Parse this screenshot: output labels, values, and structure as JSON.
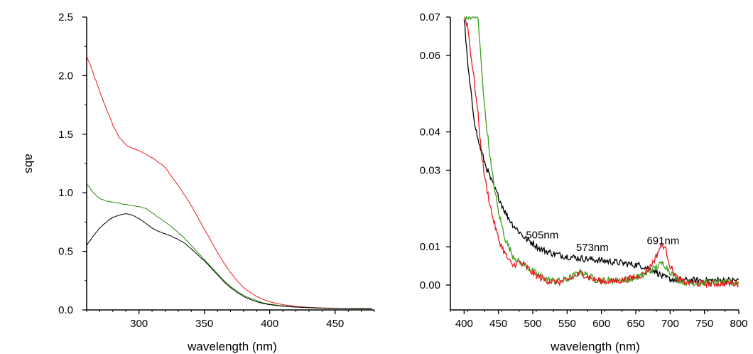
{
  "colors": {
    "red": "#e8191e",
    "green": "#2e8b12",
    "black": "#000000",
    "green_right": "#3aa01a"
  },
  "chart_data": [
    {
      "type": "line",
      "xlabel": "wavelength (nm)",
      "ylabel": "abs",
      "xlim": [
        260,
        480
      ],
      "ylim": [
        0.0,
        2.5
      ],
      "x_ticks": [
        300,
        350,
        400,
        450
      ],
      "x_tick_labels": [
        "300",
        "350",
        "400",
        "450"
      ],
      "y_ticks": [
        0.0,
        0.5,
        1.0,
        1.5,
        2.0,
        2.5
      ],
      "y_tick_labels": [
        "0.0",
        "0.5",
        "1.0",
        "1.5",
        "2.0",
        "2.5"
      ],
      "grid": false,
      "series": [
        {
          "color": "#e8191e",
          "x": [
            260,
            265,
            270,
            275,
            280,
            285,
            290,
            295,
            300,
            305,
            310,
            315,
            320,
            325,
            330,
            335,
            340,
            345,
            350,
            355,
            360,
            365,
            370,
            375,
            380,
            385,
            390,
            395,
            400,
            410,
            420,
            430,
            440,
            450,
            460,
            470,
            480
          ],
          "y": [
            2.17,
            2.02,
            1.86,
            1.72,
            1.58,
            1.47,
            1.41,
            1.38,
            1.36,
            1.33,
            1.3,
            1.26,
            1.22,
            1.14,
            1.06,
            0.98,
            0.89,
            0.79,
            0.69,
            0.59,
            0.49,
            0.4,
            0.32,
            0.25,
            0.19,
            0.15,
            0.115,
            0.09,
            0.07,
            0.045,
            0.03,
            0.022,
            0.017,
            0.014,
            0.012,
            0.011,
            0.01
          ]
        },
        {
          "color": "#2e8b12",
          "x": [
            260,
            265,
            270,
            275,
            280,
            285,
            290,
            295,
            300,
            305,
            310,
            315,
            320,
            325,
            330,
            335,
            340,
            345,
            350,
            355,
            360,
            365,
            370,
            375,
            380,
            385,
            390,
            395,
            400,
            410,
            420,
            430,
            440,
            450,
            460,
            470,
            480
          ],
          "y": [
            1.08,
            1.0,
            0.95,
            0.93,
            0.92,
            0.91,
            0.9,
            0.89,
            0.88,
            0.87,
            0.83,
            0.79,
            0.75,
            0.71,
            0.66,
            0.61,
            0.55,
            0.49,
            0.43,
            0.37,
            0.31,
            0.25,
            0.2,
            0.16,
            0.125,
            0.1,
            0.08,
            0.06,
            0.05,
            0.035,
            0.025,
            0.02,
            0.015,
            0.013,
            0.011,
            0.01,
            0.01
          ]
        },
        {
          "color": "#000000",
          "x": [
            260,
            265,
            270,
            275,
            280,
            285,
            290,
            295,
            300,
            305,
            310,
            315,
            320,
            325,
            330,
            335,
            340,
            345,
            350,
            355,
            360,
            365,
            370,
            375,
            380,
            385,
            390,
            395,
            400,
            410,
            420,
            430,
            440,
            450,
            460,
            470,
            480
          ],
          "y": [
            0.55,
            0.63,
            0.7,
            0.75,
            0.79,
            0.81,
            0.82,
            0.81,
            0.78,
            0.74,
            0.7,
            0.67,
            0.65,
            0.63,
            0.6,
            0.57,
            0.52,
            0.47,
            0.42,
            0.36,
            0.3,
            0.24,
            0.19,
            0.15,
            0.115,
            0.09,
            0.07,
            0.055,
            0.045,
            0.032,
            0.024,
            0.019,
            0.015,
            0.013,
            0.012,
            0.011,
            0.01
          ]
        }
      ]
    },
    {
      "type": "line",
      "xlabel": "wavelength (nm)",
      "ylabel": "",
      "xlim": [
        380,
        800
      ],
      "ylim": [
        -0.0065,
        0.07
      ],
      "x_ticks": [
        400,
        450,
        500,
        550,
        600,
        650,
        700,
        750,
        800
      ],
      "x_tick_labels": [
        "400",
        "450",
        "500",
        "550",
        "600",
        "650",
        "700",
        "750",
        "800"
      ],
      "y_ticks": [
        0.0,
        0.01,
        0.03,
        0.04,
        0.06,
        0.07
      ],
      "y_tick_labels": [
        "0.00",
        "0.01",
        "0.03",
        "0.04",
        "0.06",
        "0.07"
      ],
      "grid": false,
      "annotations": [
        {
          "text": "505nm",
          "x": 490,
          "y": 0.0122
        },
        {
          "text": "573nm",
          "x": 563,
          "y": 0.0089
        },
        {
          "text": "691nm",
          "x": 666,
          "y": 0.0107
        }
      ],
      "series": [
        {
          "color": "#000000",
          "x": [
            400,
            405,
            410,
            415,
            420,
            425,
            430,
            440,
            450,
            460,
            470,
            480,
            490,
            500,
            510,
            520,
            530,
            540,
            550,
            560,
            570,
            580,
            590,
            600,
            620,
            640,
            660,
            680,
            690,
            700,
            720,
            740,
            760,
            780,
            800
          ],
          "y": [
            0.07,
            0.058,
            0.05,
            0.043,
            0.038,
            0.035,
            0.032,
            0.027,
            0.023,
            0.019,
            0.016,
            0.014,
            0.012,
            0.011,
            0.0095,
            0.0088,
            0.0082,
            0.0078,
            0.0075,
            0.0072,
            0.007,
            0.0068,
            0.0066,
            0.0064,
            0.006,
            0.0055,
            0.005,
            0.0035,
            0.002,
            0.0015,
            0.0012,
            0.0012,
            0.0012,
            0.0012,
            0.0012
          ]
        },
        {
          "color": "#3aa01a",
          "x": [
            400,
            405,
            410,
            415,
            420,
            425,
            430,
            440,
            450,
            460,
            470,
            480,
            490,
            500,
            510,
            520,
            530,
            540,
            550,
            560,
            570,
            580,
            590,
            600,
            620,
            640,
            660,
            670,
            680,
            690,
            700,
            710,
            720,
            740,
            760,
            780,
            800
          ],
          "y": [
            0.07,
            0.07,
            0.07,
            0.07,
            0.07,
            0.058,
            0.046,
            0.03,
            0.019,
            0.012,
            0.008,
            0.006,
            0.005,
            0.0035,
            0.0025,
            0.0015,
            0.0012,
            0.001,
            0.0015,
            0.0025,
            0.0035,
            0.0025,
            0.0015,
            0.0012,
            0.0012,
            0.0015,
            0.0025,
            0.0035,
            0.0048,
            0.0058,
            0.0035,
            0.0015,
            0.0008,
            0.0006,
            0.0006,
            0.0006,
            0.0006
          ]
        },
        {
          "color": "#e8191e",
          "x": [
            400,
            405,
            410,
            415,
            420,
            425,
            430,
            440,
            450,
            460,
            470,
            480,
            490,
            500,
            510,
            520,
            530,
            540,
            550,
            560,
            570,
            580,
            590,
            600,
            620,
            640,
            660,
            670,
            680,
            685,
            690,
            695,
            700,
            710,
            720,
            740,
            760,
            780,
            800
          ],
          "y": [
            0.07,
            0.068,
            0.06,
            0.053,
            0.045,
            0.035,
            0.028,
            0.019,
            0.012,
            0.008,
            0.005,
            0.006,
            0.005,
            0.003,
            0.002,
            0.0012,
            0.0008,
            0.0008,
            0.0012,
            0.0022,
            0.0032,
            0.0022,
            0.0014,
            0.001,
            0.001,
            0.0016,
            0.0028,
            0.0045,
            0.0075,
            0.0098,
            0.0105,
            0.0085,
            0.005,
            0.0018,
            0.0008,
            0.0004,
            0.0004,
            0.0004,
            0.0004
          ]
        }
      ]
    }
  ]
}
